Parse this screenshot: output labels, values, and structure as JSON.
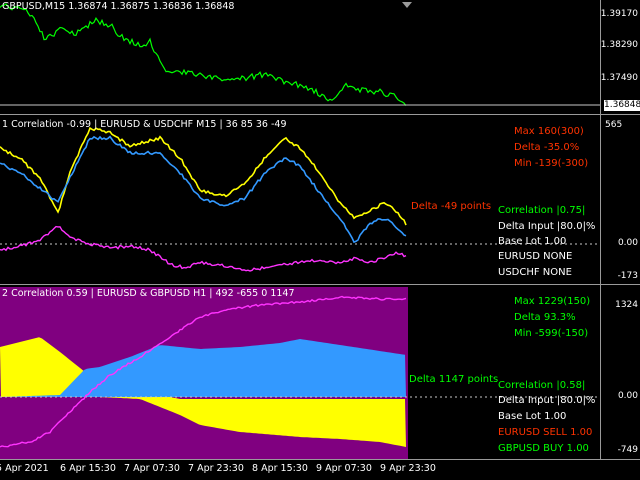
{
  "colors": {
    "background": "#000000",
    "price_line": "#00ff00",
    "yellow_line": "#ffff00",
    "blue_line": "#3399ff",
    "magenta_line": "#ff33ff",
    "purple_fill": "#800080",
    "red_text": "#ff3300",
    "green_text": "#00ff00"
  },
  "main_pane": {
    "title": "GBPUSD,M15  1.36874  1.36875  1.36836  1.36848",
    "scale": [
      "1.39170",
      "1.38290",
      "1.37490"
    ],
    "current_price": "1.36848"
  },
  "pane1": {
    "title": "1 Correlation -0.99  |  EURUSD & USDCHF M15  |  36 85 36 -49",
    "scale": [
      "565",
      "0.00",
      "-173"
    ],
    "max": "Max 160(300)",
    "delta": "Delta -35.0%",
    "min": "Min -139(-300)",
    "delta_points": "Delta -49 points",
    "correlation": "Correlation |0.75|",
    "delta_input": "Delta Input |80.0|%",
    "base_lot": "Base Lot 1.00",
    "sym1": "EURUSD NONE",
    "sym2": "USDCHF NONE"
  },
  "pane2": {
    "title": "2 Correlation 0.59  |  EURUSD & GBPUSD H1  |  492 -655 0 1147",
    "scale": [
      "1324",
      "0.00",
      "-749"
    ],
    "max": "Max 1229(150)",
    "delta": "Delta 93.3%",
    "min": "Min -599(-150)",
    "delta_points": "Delta 1147 points",
    "correlation": "Correlation |0.58|",
    "delta_input": "Delta Input |80.0|%",
    "base_lot": "Base Lot 1.00",
    "sym1": "EURUSD SELL 1.00",
    "sym2": "GBPUSD BUY 1.00"
  },
  "x_axis": [
    "5 Apr 2021",
    "6 Apr 15:30",
    "7 Apr 07:30",
    "7 Apr 23:30",
    "8 Apr 15:30",
    "9 Apr 07:30",
    "9 Apr 23:30"
  ]
}
